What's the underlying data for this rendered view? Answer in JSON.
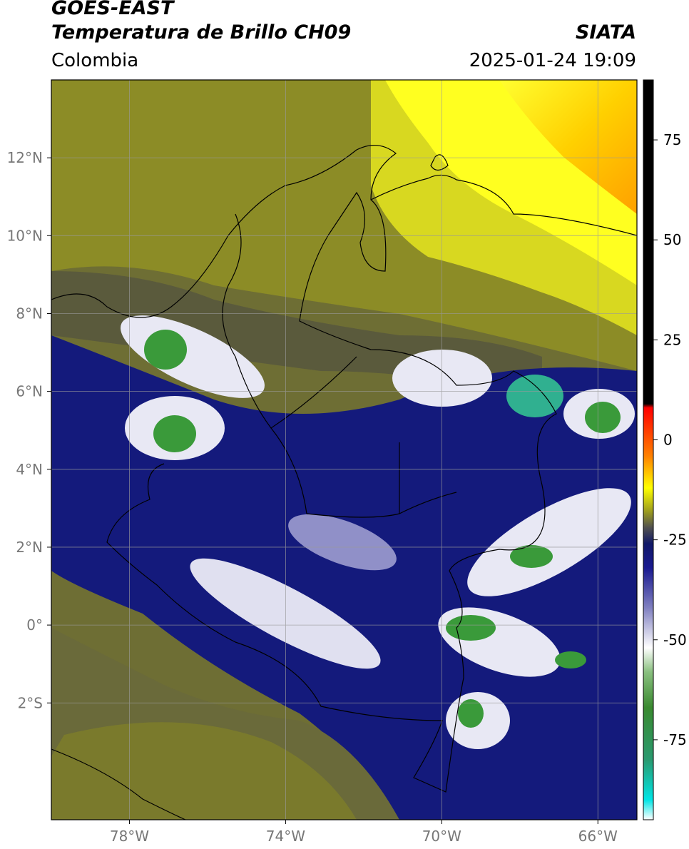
{
  "header": {
    "satellite": "GOES-EAST",
    "product": "Temperatura de Brillo CH09",
    "region": "Colombia",
    "agency": "SIATA",
    "datetime": "2025-01-24 19:09"
  },
  "map": {
    "lon_range": [
      -80,
      -65
    ],
    "lat_range": [
      -5,
      14
    ],
    "lon_ticks": [
      {
        "value": -78,
        "label": "78°W"
      },
      {
        "value": -74,
        "label": "74°W"
      },
      {
        "value": -70,
        "label": "70°W"
      },
      {
        "value": -66,
        "label": "66°W"
      }
    ],
    "lat_ticks": [
      {
        "value": 12,
        "label": "12°N"
      },
      {
        "value": 10,
        "label": "10°N"
      },
      {
        "value": 8,
        "label": "8°N"
      },
      {
        "value": 6,
        "label": "6°N"
      },
      {
        "value": 4,
        "label": "4°N"
      },
      {
        "value": 2,
        "label": "2°N"
      },
      {
        "value": 0,
        "label": "0°"
      },
      {
        "value": -2,
        "label": "2°S"
      }
    ],
    "colors": {
      "dry_yellow": "#ffff00",
      "dry_orange": "#ffa500",
      "olive": "#8a8a28",
      "dark_olive": "#5a5a38",
      "navy": "#101880",
      "white_cloud": "#ffffff",
      "green_core": "#3a9a3a",
      "teal_core": "#30b090"
    }
  },
  "colorbar": {
    "min": -95,
    "max": 90,
    "ticks": [
      {
        "value": 75,
        "label": "75"
      },
      {
        "value": 50,
        "label": "50"
      },
      {
        "value": 25,
        "label": "25"
      },
      {
        "value": 0,
        "label": "0"
      },
      {
        "value": -25,
        "label": "-25"
      },
      {
        "value": -50,
        "label": "-50"
      },
      {
        "value": -75,
        "label": "-75"
      }
    ],
    "stops": [
      {
        "value": -95,
        "color": "#ffffff"
      },
      {
        "value": -90,
        "color": "#00e5e5"
      },
      {
        "value": -80,
        "color": "#2a9a70"
      },
      {
        "value": -67,
        "color": "#3a8a30"
      },
      {
        "value": -58,
        "color": "#8ac080"
      },
      {
        "value": -52,
        "color": "#ffffff"
      },
      {
        "value": -42,
        "color": "#8080c0"
      },
      {
        "value": -32,
        "color": "#1a1a90"
      },
      {
        "value": -26,
        "color": "#101868"
      },
      {
        "value": -22,
        "color": "#505050"
      },
      {
        "value": -18,
        "color": "#9a9a20"
      },
      {
        "value": -12,
        "color": "#ffff00"
      },
      {
        "value": -4,
        "color": "#ff8000"
      },
      {
        "value": 8,
        "color": "#ff0000"
      },
      {
        "value": 9,
        "color": "#000000"
      },
      {
        "value": 90,
        "color": "#000000"
      }
    ]
  }
}
